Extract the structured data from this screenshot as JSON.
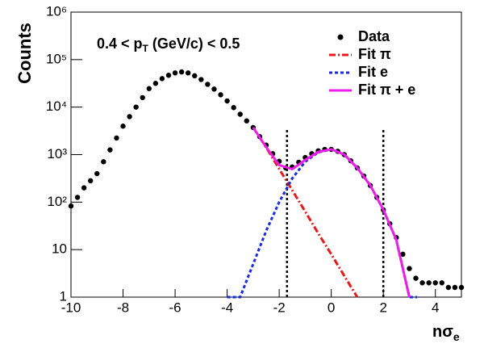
{
  "chart_data": {
    "type": "scatter",
    "annotation": [
      "0.4 < p",
      "T",
      " (GeV/c) < 0.5"
    ],
    "xlabel": [
      "nσ",
      "e"
    ],
    "ylabel": "Counts",
    "log_y": true,
    "legend": "upper right",
    "xlim": [
      -10,
      5
    ],
    "ylim": [
      1,
      1000000
    ],
    "xticks": [
      -10,
      -8,
      -6,
      -4,
      -2,
      0,
      2,
      4
    ],
    "yticks": [
      1,
      10,
      {
        "value": 100,
        "label": "10²"
      },
      {
        "value": 1000,
        "label": "10³"
      },
      {
        "value": 10000,
        "label": "10⁴"
      },
      {
        "value": 100000,
        "label": "10⁵"
      },
      {
        "value": 1000000,
        "label": "10⁶"
      }
    ],
    "cut_lines": [
      -1.7,
      2
    ],
    "series": [
      {
        "name": "Data",
        "color": "#000000",
        "style": "points",
        "x": [
          -10,
          -9.75,
          -9.5,
          -9.25,
          -9,
          -8.75,
          -8.5,
          -8.25,
          -8,
          -7.75,
          -7.5,
          -7.25,
          -7,
          -6.75,
          -6.5,
          -6.25,
          -6,
          -5.75,
          -5.5,
          -5.25,
          -5,
          -4.75,
          -4.5,
          -4.25,
          -4,
          -3.75,
          -3.5,
          -3.25,
          -3,
          -2.75,
          -2.5,
          -2.25,
          -2,
          -1.75,
          -1.5,
          -1.25,
          -1,
          -0.75,
          -0.5,
          -0.25,
          0,
          0.25,
          0.5,
          0.75,
          1,
          1.25,
          1.5,
          1.75,
          2,
          2.25,
          2.5,
          2.75,
          3,
          3.25,
          3.5,
          3.75,
          4,
          4.25,
          4.5,
          4.75,
          5
        ],
        "values": [
          83,
          126,
          200,
          282,
          398,
          708,
          1259,
          2239,
          3981,
          6310,
          10000,
          15849,
          24547,
          31623,
          39811,
          46774,
          52481,
          54954,
          52481,
          45709,
          38019,
          30200,
          23988,
          18197,
          13490,
          9772,
          7079,
          5129,
          3715,
          2399,
          1585,
          1047,
          724,
          525,
          550,
          692,
          871,
          1047,
          1202,
          1288,
          1288,
          1175,
          1000,
          741,
          525,
          355,
          224,
          126,
          69,
          35,
          18,
          8,
          4,
          2.5,
          2,
          2,
          2,
          2,
          1.6,
          1.6,
          1.6
        ]
      },
      {
        "name": "Fit π",
        "color": "#e8191c",
        "style": "dashdot",
        "x": [
          -3,
          -2.5,
          -2,
          -1.5,
          -1,
          -0.5,
          0,
          0.5,
          1
        ],
        "values": [
          3715,
          1413,
          501,
          178,
          63,
          22,
          8,
          2.8,
          1
        ]
      },
      {
        "name": "Fit e",
        "color": "#1a2bdc",
        "style": "dotted",
        "x": [
          -4,
          -3.5,
          -3,
          -2.5,
          -2,
          -1.5,
          -1,
          -0.5,
          0,
          0.5,
          1,
          1.5,
          2,
          2.5,
          3,
          3.3
        ],
        "values": [
          1,
          1,
          5,
          25,
          100,
          316,
          708,
          1122,
          1288,
          1000,
          525,
          224,
          69,
          16,
          1,
          1
        ]
      },
      {
        "name": "Fit π + e",
        "color": "#ee1ee8",
        "style": "solid",
        "x": [
          -3,
          -2.5,
          -2,
          -1.5,
          -1,
          -0.5,
          0,
          0.5,
          1,
          1.5,
          2,
          2.5,
          3
        ],
        "values": [
          3720,
          1438,
          601,
          494,
          771,
          1144,
          1296,
          1003,
          526,
          224,
          69,
          16,
          1
        ]
      }
    ]
  }
}
